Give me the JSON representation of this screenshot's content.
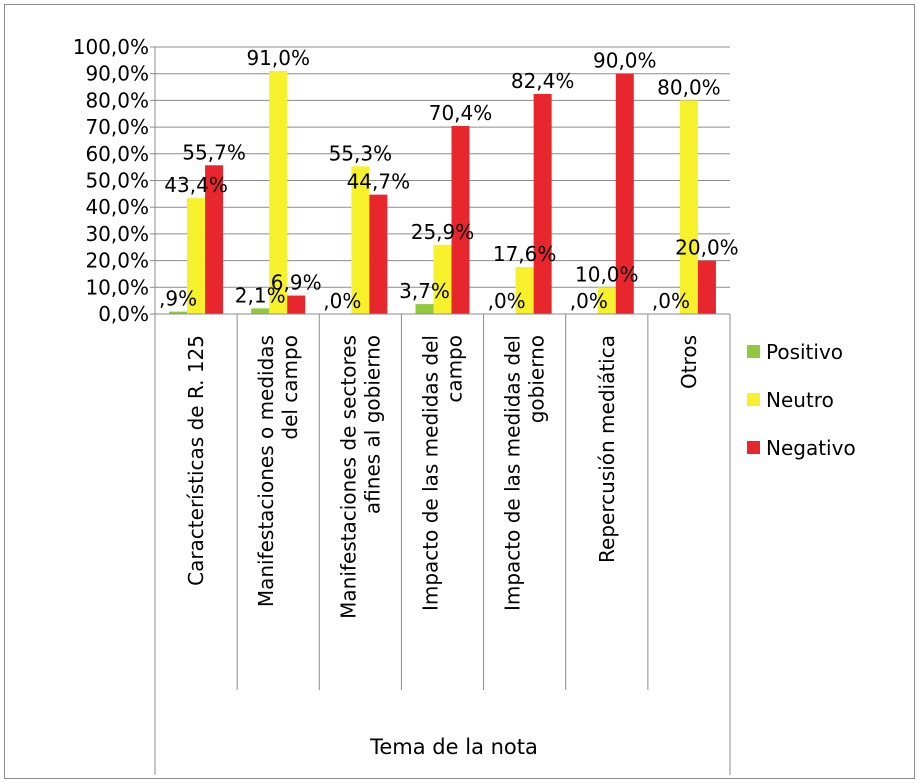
{
  "chart_data": {
    "type": "bar",
    "xlabel": "Tema de la nota",
    "ylabel": "",
    "ylim": [
      0,
      100
    ],
    "ytick_step": 10,
    "ytick_labels": [
      "0,0%",
      "10,0%",
      "20,0%",
      "30,0%",
      "40,0%",
      "50,0%",
      "60,0%",
      "70,0%",
      "80,0%",
      "90,0%",
      "100,0%"
    ],
    "categories": [
      [
        "Características de R. 125"
      ],
      [
        "Manifestaciones o medidas",
        "del campo"
      ],
      [
        "Manifestaciones de sectores",
        "afines al gobierno"
      ],
      [
        "Impacto de las medidas del",
        "campo"
      ],
      [
        "Impacto de las medidas del",
        "gobierno"
      ],
      [
        "Repercusión mediática"
      ],
      [
        "Otros"
      ]
    ],
    "series": [
      {
        "name": "Positivo",
        "color": "#92c83e",
        "values": [
          0.9,
          2.1,
          0.0,
          3.7,
          0.0,
          0.0,
          0.0
        ],
        "labels": [
          ",9%",
          "2,1%",
          ",0%",
          "3,7%",
          ",0%",
          ",0%",
          ",0%"
        ]
      },
      {
        "name": "Neutro",
        "color": "#f6f12a",
        "values": [
          43.4,
          91.0,
          55.3,
          25.9,
          17.6,
          10.0,
          80.0
        ],
        "labels": [
          "43,4%",
          "91,0%",
          "55,3%",
          "25,9%",
          "17,6%",
          "10,0%",
          "80,0%"
        ]
      },
      {
        "name": "Negativo",
        "color": "#e8262d",
        "values": [
          55.7,
          6.9,
          44.7,
          70.4,
          82.4,
          90.0,
          20.0
        ],
        "labels": [
          "55,7%",
          "6,9%",
          "44,7%",
          "70,4%",
          "82,4%",
          "90,0%",
          "20,0%"
        ]
      }
    ],
    "grid": true,
    "legend_position": "right"
  }
}
